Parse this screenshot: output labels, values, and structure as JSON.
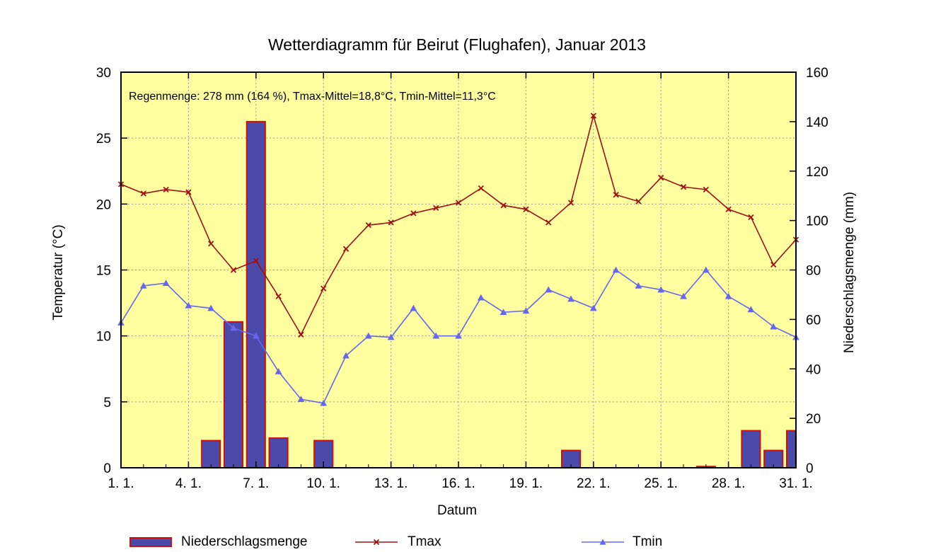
{
  "chart_data": {
    "type": "bar+line",
    "title": "Wetterdiagramm für Beirut (Flughafen), Januar 2013",
    "annotation": "Regenmenge: 278 mm (164 %),  Tmax-Mittel=18,8°C,  Tmin-Mittel=11,3°C",
    "xlabel": "Datum",
    "ylabel_left": "Temperatur (°C)",
    "ylabel_right": "Niederschlagsmenge (mm)",
    "ylim_left": [
      0,
      30
    ],
    "ylim_right": [
      0,
      160
    ],
    "left_ticks": [
      0,
      5,
      10,
      15,
      20,
      25,
      30
    ],
    "right_ticks": [
      0,
      20,
      40,
      60,
      80,
      100,
      120,
      140,
      160
    ],
    "x_ticks": [
      {
        "day": 1,
        "label": "1. 1."
      },
      {
        "day": 4,
        "label": "4. 1."
      },
      {
        "day": 7,
        "label": "7. 1."
      },
      {
        "day": 10,
        "label": "10. 1."
      },
      {
        "day": 13,
        "label": "13. 1."
      },
      {
        "day": 16,
        "label": "16. 1."
      },
      {
        "day": 19,
        "label": "19. 1."
      },
      {
        "day": 22,
        "label": "22. 1."
      },
      {
        "day": 25,
        "label": "25. 1."
      },
      {
        "day": 28,
        "label": "28. 1."
      },
      {
        "day": 31,
        "label": "31. 1."
      }
    ],
    "days": [
      1,
      2,
      3,
      4,
      5,
      6,
      7,
      8,
      9,
      10,
      11,
      12,
      13,
      14,
      15,
      16,
      17,
      18,
      19,
      20,
      21,
      22,
      23,
      24,
      25,
      26,
      27,
      28,
      29,
      30,
      31
    ],
    "grid": true,
    "legend_position": "bottom",
    "colors": {
      "plot_background": "#ffffa0",
      "bar_fill": "#4a4aaa",
      "bar_edge": "#cc1010",
      "tmax": "#a01010",
      "tmin": "#6666ee"
    },
    "series": [
      {
        "name": "Niederschlagsmenge",
        "kind": "bar",
        "axis": "right",
        "values": [
          0,
          0,
          0,
          0,
          11,
          59,
          140,
          12,
          0,
          11,
          0,
          0,
          0,
          0,
          0,
          0,
          0,
          0,
          0,
          0,
          7,
          0,
          0,
          0,
          0,
          0,
          0.5,
          0,
          15,
          7,
          15
        ]
      },
      {
        "name": "Tmax",
        "kind": "line",
        "marker": "x",
        "axis": "left",
        "values": [
          21.5,
          20.8,
          21.1,
          20.9,
          17.0,
          15.0,
          15.7,
          13.0,
          10.1,
          13.6,
          16.6,
          18.4,
          18.6,
          19.3,
          19.7,
          20.1,
          21.2,
          19.9,
          19.6,
          18.6,
          20.1,
          26.7,
          20.7,
          20.2,
          22.0,
          21.3,
          21.1,
          19.6,
          19.0,
          15.4,
          17.3
        ]
      },
      {
        "name": "Tmin",
        "kind": "line",
        "marker": "triangle",
        "axis": "left",
        "values": [
          11.0,
          13.8,
          14.0,
          12.3,
          12.1,
          10.6,
          10.0,
          7.3,
          5.2,
          4.9,
          8.5,
          10.0,
          9.9,
          12.1,
          10.0,
          10.0,
          12.9,
          11.8,
          11.9,
          13.5,
          12.8,
          12.1,
          15.0,
          13.8,
          13.5,
          13.0,
          15.0,
          13.0,
          12.0,
          10.7,
          9.9
        ]
      }
    ]
  }
}
